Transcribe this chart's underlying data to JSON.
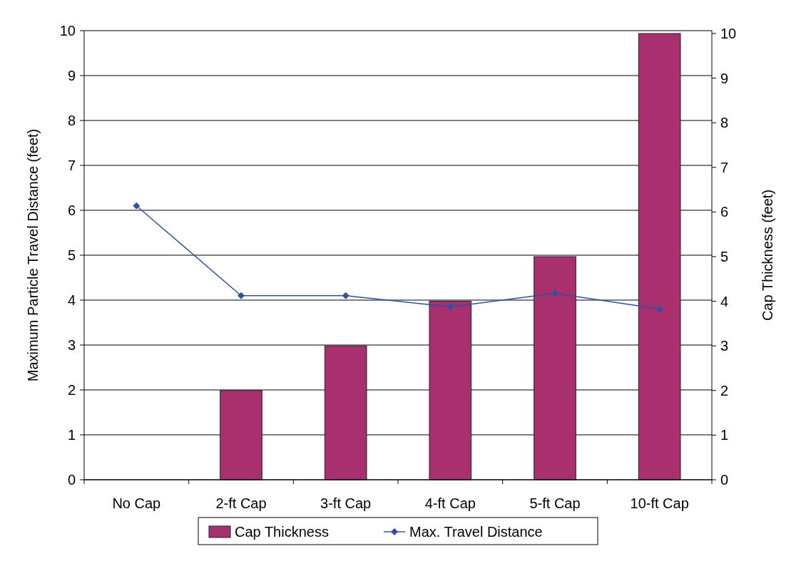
{
  "chart_data": {
    "type": "bar",
    "categories": [
      "No Cap",
      "2-ft Cap",
      "3-ft Cap",
      "4-ft Cap",
      "5-ft Cap",
      "10-ft Cap"
    ],
    "ylabel": "Maximum Particle Travel Distance (feet)",
    "y2label": "Cap Thickness (feet)",
    "ylim": [
      0,
      10
    ],
    "yticks": [
      0,
      1,
      2,
      3,
      4,
      5,
      6,
      7,
      8,
      9,
      10
    ],
    "y2lim": [
      0,
      10
    ],
    "y2ticks": [
      0,
      1,
      2,
      3,
      4,
      5,
      6,
      7,
      8,
      9,
      10
    ],
    "grid": "y",
    "legend": "bottom",
    "series": [
      {
        "name": "Cap Thickness",
        "axis": "y2",
        "color": "#a8306e",
        "values": [
          0,
          2,
          3,
          4,
          5,
          10
        ]
      },
      {
        "name": "Max. Travel Distance",
        "type": "line",
        "color": "#3050a0",
        "marker": "diamond",
        "values": [
          6.1,
          4.1,
          4.1,
          3.85,
          4.15,
          3.8
        ]
      }
    ]
  }
}
